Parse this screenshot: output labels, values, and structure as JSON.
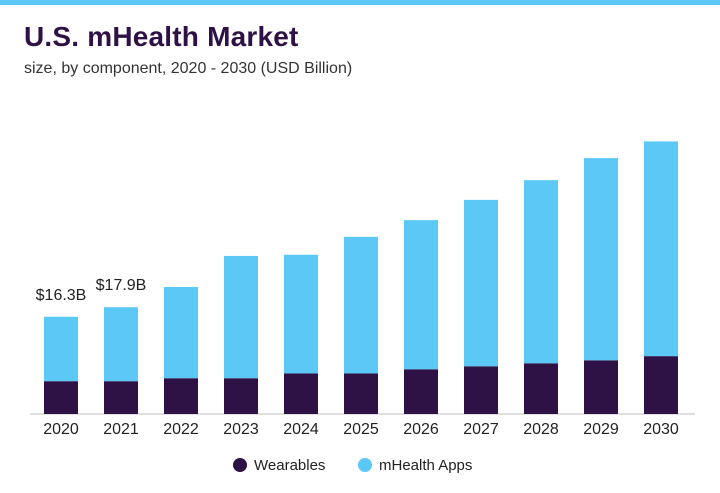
{
  "header": {
    "title": "U.S. mHealth Market",
    "subtitle": "size, by component, 2020 - 2030 (USD Billion)"
  },
  "colors": {
    "accent": "#5bc8f5",
    "wearables": "#2e1145",
    "apps": "#5bc8f5",
    "title": "#2e1145",
    "text": "#222222"
  },
  "chart_data": {
    "type": "bar",
    "stacked": true,
    "title": "U.S. mHealth Market",
    "subtitle": "size, by component, 2020 - 2030 (USD Billion)",
    "xlabel": "",
    "ylabel": "",
    "ylim": [
      0,
      57
    ],
    "grid": false,
    "legend_position": "bottom-center",
    "categories": [
      "2020",
      "2021",
      "2022",
      "2023",
      "2024",
      "2025",
      "2026",
      "2027",
      "2028",
      "2029",
      "2030"
    ],
    "series": [
      {
        "name": "Wearables",
        "color": "#2e1145",
        "values": [
          5.5,
          5.5,
          6.0,
          6.0,
          6.8,
          6.8,
          7.5,
          8.0,
          8.5,
          9.0,
          9.7
        ]
      },
      {
        "name": "mHealth Apps",
        "color": "#5bc8f5",
        "values": [
          10.8,
          12.4,
          15.3,
          20.5,
          19.9,
          22.9,
          25.0,
          27.9,
          30.7,
          33.9,
          36.0
        ]
      }
    ],
    "annotations": [
      {
        "category": "2020",
        "label": "$16.3B"
      },
      {
        "category": "2021",
        "label": "$17.9B"
      }
    ]
  }
}
